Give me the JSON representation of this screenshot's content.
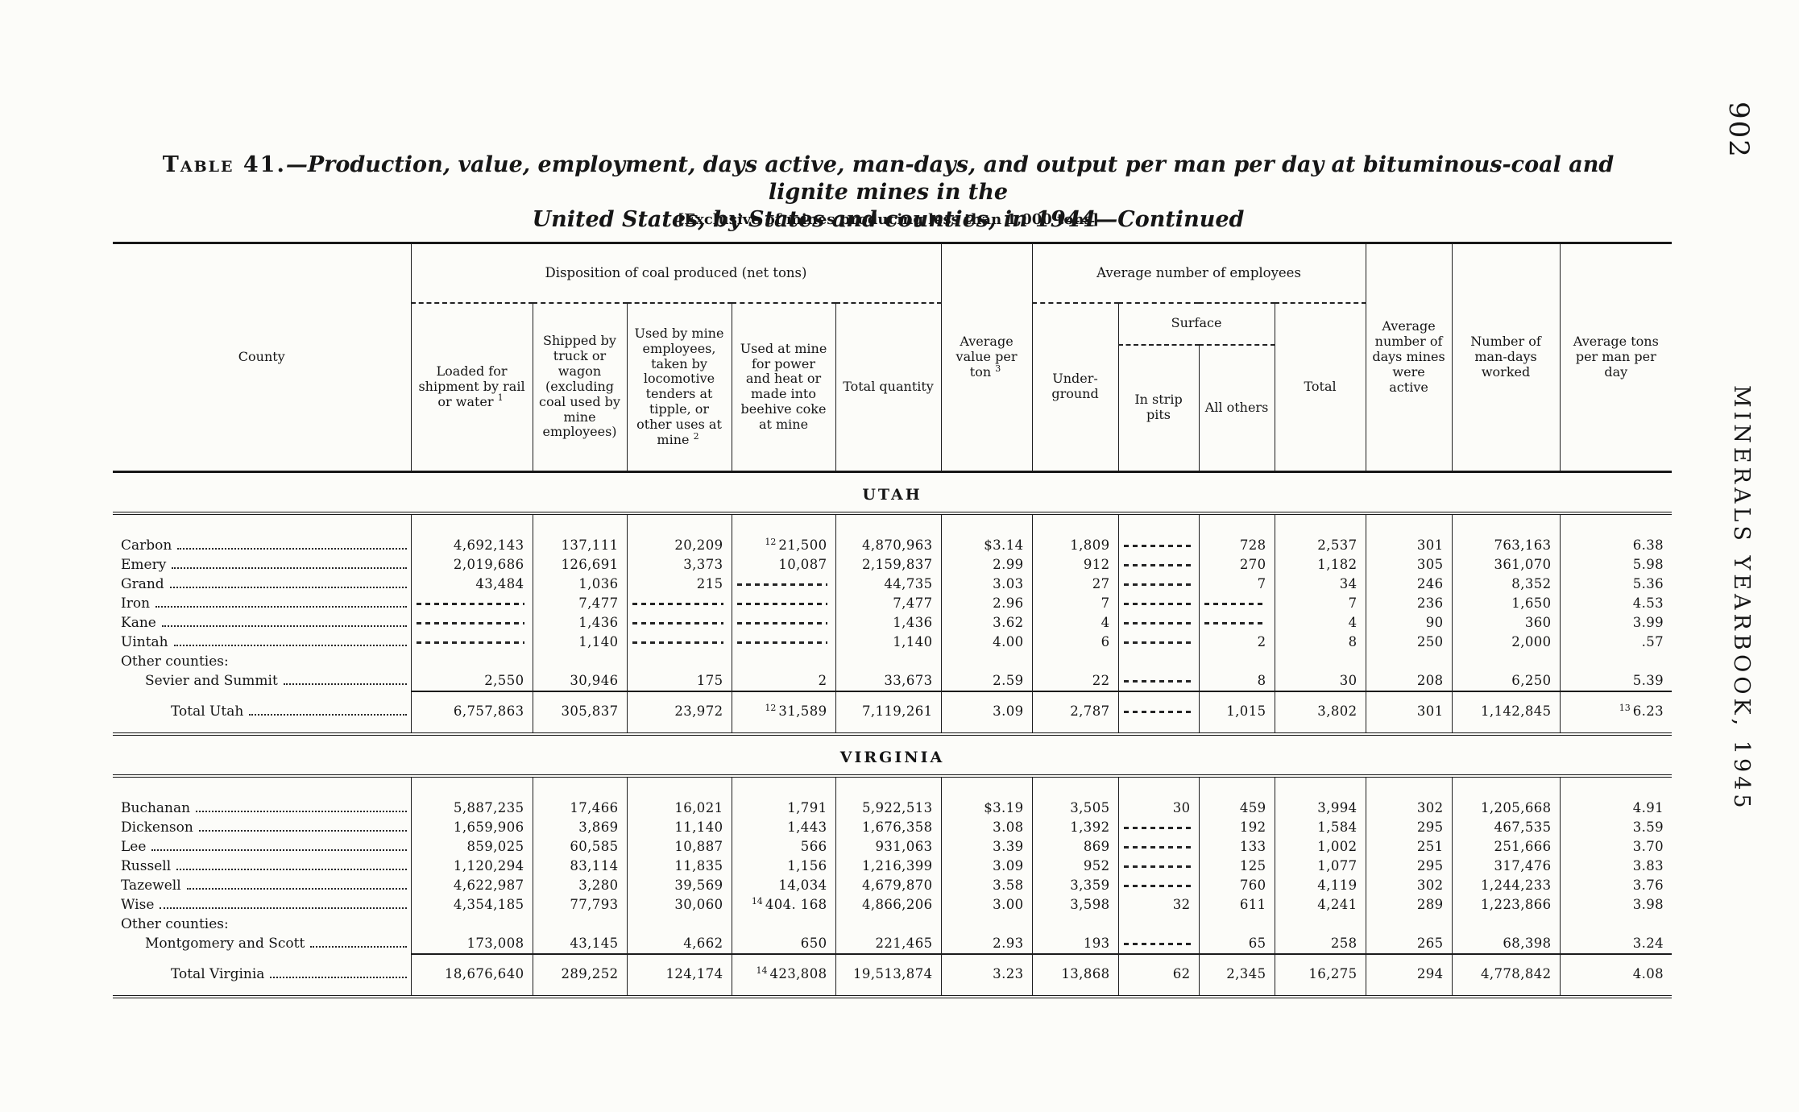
{
  "page": {
    "page_number": "902",
    "side_caption": "MINERALS YEARBOOK, 1945",
    "title_prefix": "Table 41.",
    "title_line1": "—Production, value, employment, days active, man-days, and output per man per day at bituminous-coal and lignite mines in the",
    "title_line2": "United States, by States and counties, in 1944—Continued",
    "bracket_note": "[Exclusive of mines producing less than 1,000 tons]"
  },
  "table": {
    "county_header": "County",
    "disposition_group": "Disposition of coal produced (net tons)",
    "employees_group": "Average number of employees",
    "surface_group": "Surface",
    "sub_columns": {
      "loaded": "Loaded for shipment by rail or water ^{1}",
      "shipped": "Shipped by truck or wagon (excluding coal used by mine employees)",
      "used_by_employees": "Used by mine employees, taken by locomotive tenders at tipple, or other uses at mine ^{2}",
      "used_at_mine": "Used at mine for power and heat or made into beehive coke at mine",
      "total_quantity": "Total quantity",
      "avg_value": "Average value per ton ^{3}",
      "underground": "Under-ground",
      "strip_pits": "In strip pits",
      "all_others": "All others",
      "employees_total": "Total",
      "days_active": "Average number of days mines were active",
      "man_days": "Number of man-days worked",
      "tons_per_man": "Average tons per man per day"
    },
    "sections": [
      {
        "title": "UTAH",
        "rows": [
          {
            "label": "Carbon",
            "cells": [
              "4,692,143",
              "137,111",
              "20,209",
              "^{12} 21,500",
              "4,870,963",
              "$3.14",
              "1,809",
              "",
              "728",
              "2,537",
              "301",
              "763,163",
              "6.38"
            ]
          },
          {
            "label": "Emery",
            "cells": [
              "2,019,686",
              "126,691",
              "3,373",
              "10,087",
              "2,159,837",
              "2.99",
              "912",
              "",
              "270",
              "1,182",
              "305",
              "361,070",
              "5.98"
            ]
          },
          {
            "label": "Grand",
            "cells": [
              "43,484",
              "1,036",
              "215",
              "",
              "44,735",
              "3.03",
              "27",
              "",
              "7",
              "34",
              "246",
              "8,352",
              "5.36"
            ]
          },
          {
            "label": "Iron",
            "cells": [
              "",
              "7,477",
              "",
              "",
              "7,477",
              "2.96",
              "7",
              "",
              "",
              "7",
              "236",
              "1,650",
              "4.53"
            ]
          },
          {
            "label": "Kane",
            "cells": [
              "",
              "1,436",
              "",
              "",
              "1,436",
              "3.62",
              "4",
              "",
              "",
              "4",
              "90",
              "360",
              "3.99"
            ]
          },
          {
            "label": "Uintah",
            "cells": [
              "",
              "1,140",
              "",
              "",
              "1,140",
              "4.00",
              "6",
              "",
              "2",
              "8",
              "250",
              "2,000",
              ".57"
            ]
          },
          {
            "label": "Other counties:",
            "type": "group"
          },
          {
            "label": "Sevier and Summit",
            "indent": 1,
            "cells": [
              "2,550",
              "30,946",
              "175",
              "2",
              "33,673",
              "2.59",
              "22",
              "",
              "8",
              "30",
              "208",
              "6,250",
              "5.39"
            ]
          }
        ],
        "total": {
          "label": "Total Utah",
          "indent": 2,
          "cells": [
            "6,757,863",
            "305,837",
            "23,972",
            "^{12} 31,589",
            "7,119,261",
            "3.09",
            "2,787",
            "",
            "1,015",
            "3,802",
            "301",
            "1,142,845",
            "^{13} 6.23"
          ]
        }
      },
      {
        "title": "VIRGINIA",
        "rows": [
          {
            "label": "Buchanan",
            "cells": [
              "5,887,235",
              "17,466",
              "16,021",
              "1,791",
              "5,922,513",
              "$3.19",
              "3,505",
              "30",
              "459",
              "3,994",
              "302",
              "1,205,668",
              "4.91"
            ]
          },
          {
            "label": "Dickenson",
            "cells": [
              "1,659,906",
              "3,869",
              "11,140",
              "1,443",
              "1,676,358",
              "3.08",
              "1,392",
              "",
              "192",
              "1,584",
              "295",
              "467,535",
              "3.59"
            ]
          },
          {
            "label": "Lee",
            "cells": [
              "859,025",
              "60,585",
              "10,887",
              "566",
              "931,063",
              "3.39",
              "869",
              "",
              "133",
              "1,002",
              "251",
              "251,666",
              "3.70"
            ]
          },
          {
            "label": "Russell",
            "cells": [
              "1,120,294",
              "83,114",
              "11,835",
              "1,156",
              "1,216,399",
              "3.09",
              "952",
              "",
              "125",
              "1,077",
              "295",
              "317,476",
              "3.83"
            ]
          },
          {
            "label": "Tazewell",
            "cells": [
              "4,622,987",
              "3,280",
              "39,569",
              "14,034",
              "4,679,870",
              "3.58",
              "3,359",
              "",
              "760",
              "4,119",
              "302",
              "1,244,233",
              "3.76"
            ]
          },
          {
            "label": "Wise",
            "cells": [
              "4,354,185",
              "77,793",
              "30,060",
              "^{14} 404. 168",
              "4,866,206",
              "3.00",
              "3,598",
              "32",
              "611",
              "4,241",
              "289",
              "1,223,866",
              "3.98"
            ]
          },
          {
            "label": "Other counties:",
            "type": "group"
          },
          {
            "label": "Montgomery and Scott",
            "indent": 1,
            "cells": [
              "173,008",
              "43,145",
              "4,662",
              "650",
              "221,465",
              "2.93",
              "193",
              "",
              "65",
              "258",
              "265",
              "68,398",
              "3.24"
            ]
          }
        ],
        "total": {
          "label": "Total Virginia",
          "indent": 2,
          "cells": [
            "18,676,640",
            "289,252",
            "124,174",
            "^{14} 423,808",
            "19,513,874",
            "3.23",
            "13,868",
            "62",
            "2,345",
            "16,275",
            "294",
            "4,778,842",
            "4.08"
          ]
        }
      }
    ]
  }
}
